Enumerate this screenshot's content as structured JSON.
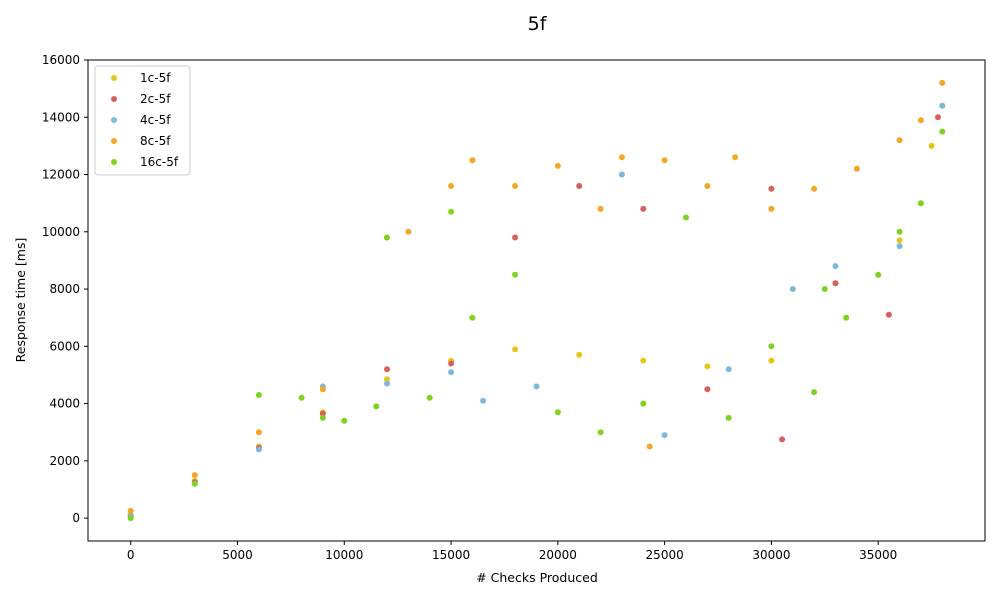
{
  "chart_data": {
    "type": "scatter",
    "title": "5f",
    "xlabel": "# Checks Produced",
    "ylabel": "Response time [ms]",
    "xlim": [
      -2000,
      40000
    ],
    "ylim": [
      -800,
      16000
    ],
    "x_ticks": [
      0,
      5000,
      10000,
      15000,
      20000,
      25000,
      30000,
      35000
    ],
    "y_ticks": [
      0,
      2000,
      4000,
      6000,
      8000,
      10000,
      12000,
      14000,
      16000
    ],
    "grid": false,
    "legend_position": "top-left",
    "series": [
      {
        "name": "1c-5f",
        "color": "#e6c619",
        "points": [
          [
            0,
            100
          ],
          [
            3000,
            1300
          ],
          [
            6000,
            2500
          ],
          [
            9000,
            3700
          ],
          [
            12000,
            4850
          ],
          [
            15000,
            5500
          ],
          [
            18000,
            5900
          ],
          [
            21000,
            5700
          ],
          [
            24000,
            5500
          ],
          [
            27000,
            5300
          ],
          [
            30000,
            5500
          ],
          [
            33000,
            8200
          ],
          [
            36000,
            9700
          ],
          [
            37500,
            13000
          ]
        ]
      },
      {
        "name": "2c-5f",
        "color": "#d95f5f",
        "points": [
          [
            0,
            80
          ],
          [
            3000,
            1250
          ],
          [
            6000,
            2450
          ],
          [
            9000,
            3650
          ],
          [
            12000,
            5200
          ],
          [
            15000,
            5400
          ],
          [
            18000,
            9800
          ],
          [
            21000,
            11600
          ],
          [
            24000,
            10800
          ],
          [
            27000,
            4500
          ],
          [
            30000,
            11500
          ],
          [
            30500,
            2750
          ],
          [
            33000,
            8200
          ],
          [
            35500,
            7100
          ],
          [
            37800,
            14000
          ]
        ]
      },
      {
        "name": "4c-5f",
        "color": "#7fb9d9",
        "points": [
          [
            0,
            60
          ],
          [
            3000,
            1200
          ],
          [
            6000,
            2400
          ],
          [
            9000,
            4600
          ],
          [
            12000,
            4700
          ],
          [
            15000,
            5100
          ],
          [
            16500,
            4100
          ],
          [
            19000,
            4600
          ],
          [
            23000,
            12000
          ],
          [
            25000,
            2900
          ],
          [
            28000,
            5200
          ],
          [
            31000,
            8000
          ],
          [
            33000,
            8800
          ],
          [
            36000,
            9500
          ],
          [
            38000,
            14400
          ]
        ]
      },
      {
        "name": "8c-5f",
        "color": "#f5a623",
        "points": [
          [
            0,
            250
          ],
          [
            3000,
            1500
          ],
          [
            6000,
            3000
          ],
          [
            9000,
            4500
          ],
          [
            12000,
            9800
          ],
          [
            13000,
            10000
          ],
          [
            15000,
            11600
          ],
          [
            16000,
            12500
          ],
          [
            18000,
            11600
          ],
          [
            20000,
            12300
          ],
          [
            22000,
            10800
          ],
          [
            23000,
            12600
          ],
          [
            24300,
            2500
          ],
          [
            25000,
            12500
          ],
          [
            27000,
            11600
          ],
          [
            28300,
            12600
          ],
          [
            30000,
            10800
          ],
          [
            32000,
            11500
          ],
          [
            34000,
            12200
          ],
          [
            36000,
            13200
          ],
          [
            37000,
            13900
          ],
          [
            38000,
            15200
          ]
        ]
      },
      {
        "name": "16c-5f",
        "color": "#7ed321",
        "points": [
          [
            0,
            0
          ],
          [
            3000,
            1200
          ],
          [
            6000,
            4300
          ],
          [
            8000,
            4200
          ],
          [
            9000,
            3500
          ],
          [
            10000,
            3400
          ],
          [
            11500,
            3900
          ],
          [
            12000,
            9800
          ],
          [
            14000,
            4200
          ],
          [
            15000,
            10700
          ],
          [
            16000,
            7000
          ],
          [
            18000,
            8500
          ],
          [
            20000,
            3700
          ],
          [
            22000,
            3000
          ],
          [
            24000,
            4000
          ],
          [
            26000,
            10500
          ],
          [
            28000,
            3500
          ],
          [
            30000,
            6000
          ],
          [
            32000,
            4400
          ],
          [
            32500,
            8000
          ],
          [
            33500,
            7000
          ],
          [
            35000,
            8500
          ],
          [
            36000,
            10000
          ],
          [
            37000,
            11000
          ],
          [
            38000,
            13500
          ]
        ]
      }
    ]
  }
}
